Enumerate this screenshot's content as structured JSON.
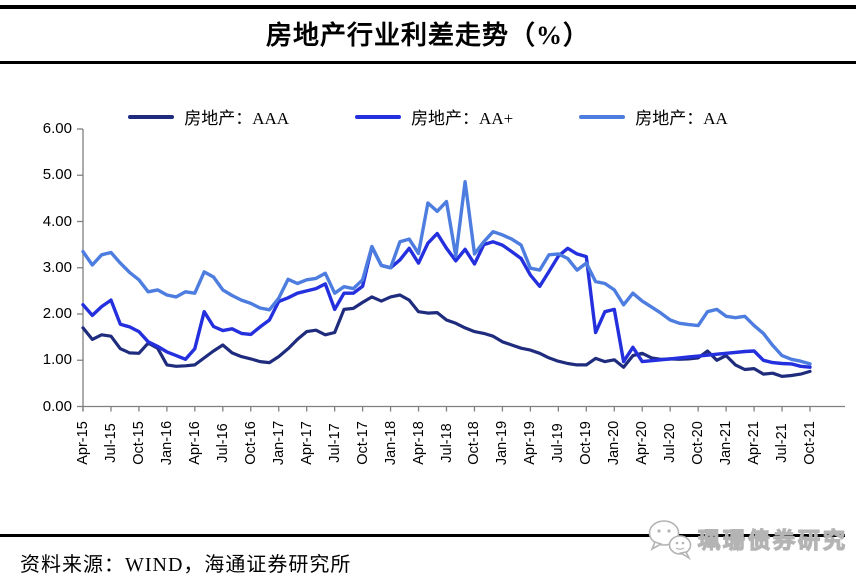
{
  "title": "房地产行业利差走势（%）",
  "legend": [
    {
      "label": "房地产：AAA",
      "color": "#1F2C7E"
    },
    {
      "label": "房地产：AA+",
      "color": "#2430DE"
    },
    {
      "label": "房地产：AA",
      "color": "#4E7DE0"
    }
  ],
  "source_note": "资料来源：WIND，海通证券研究所",
  "watermark_text": "珮珊债券研究",
  "axis_color": "#808080",
  "chart_data": {
    "type": "line",
    "title": "房地产行业利差走势（%）",
    "xlabel": "",
    "ylabel": "",
    "ylim": [
      0,
      6
    ],
    "y_tick_labels": [
      "0.00",
      "1.00",
      "2.00",
      "3.00",
      "4.00",
      "5.00",
      "6.00"
    ],
    "x_tick_labels": [
      "Apr-15",
      "Jul-15",
      "Oct-15",
      "Jan-16",
      "Apr-16",
      "Jul-16",
      "Oct-16",
      "Jan-17",
      "Apr-17",
      "Jul-17",
      "Oct-17",
      "Jan-18",
      "Apr-18",
      "Jul-18",
      "Oct-18",
      "Jan-19",
      "Apr-19",
      "Jul-19",
      "Oct-19",
      "Jan-20",
      "Apr-20",
      "Jul-20",
      "Oct-20",
      "Jan-21",
      "Apr-21",
      "Jul-21",
      "Oct-21"
    ],
    "x_frequency": "monthly",
    "x_range": [
      "Apr-15",
      "Oct-21"
    ],
    "grid": false,
    "legend_position": "top",
    "series": [
      {
        "name": "房地产：AAA",
        "color": "#1F2C7E",
        "values": [
          1.7,
          1.45,
          1.55,
          1.52,
          1.25,
          1.16,
          1.15,
          1.37,
          1.26,
          0.9,
          0.87,
          0.88,
          0.9,
          1.05,
          1.2,
          1.33,
          1.16,
          1.08,
          1.03,
          0.97,
          0.95,
          1.08,
          1.25,
          1.45,
          1.62,
          1.65,
          1.55,
          1.6,
          2.1,
          2.12,
          2.25,
          2.37,
          2.28,
          2.37,
          2.41,
          2.3,
          2.05,
          2.02,
          2.03,
          1.87,
          1.8,
          1.7,
          1.62,
          1.58,
          1.52,
          1.4,
          1.33,
          1.26,
          1.22,
          1.15,
          1.05,
          0.98,
          0.93,
          0.9,
          0.9,
          1.04,
          0.97,
          1.01,
          0.85,
          1.1,
          1.15,
          1.05,
          1.02,
          1.03,
          1.02,
          1.03,
          1.05,
          1.2,
          1.0,
          1.1,
          0.9,
          0.8,
          0.82,
          0.7,
          0.72,
          0.65,
          0.67,
          0.7,
          0.76
        ]
      },
      {
        "name": "房地产：AA+",
        "color": "#2430DE",
        "values": [
          2.2,
          1.97,
          2.16,
          2.3,
          1.78,
          1.72,
          1.62,
          1.4,
          1.3,
          1.18,
          1.1,
          1.02,
          1.25,
          2.05,
          1.73,
          1.64,
          1.68,
          1.58,
          1.56,
          1.72,
          1.87,
          2.27,
          2.35,
          2.45,
          2.5,
          2.55,
          2.65,
          2.1,
          2.45,
          2.45,
          2.6,
          3.45,
          3.05,
          3.0,
          3.17,
          3.42,
          3.1,
          3.53,
          3.74,
          3.42,
          3.15,
          3.4,
          3.08,
          3.5,
          3.56,
          3.49,
          3.35,
          3.2,
          2.84,
          2.6,
          2.92,
          3.25,
          3.42,
          3.3,
          3.24,
          1.6,
          2.05,
          2.1,
          0.97,
          1.28,
          0.97,
          0.99,
          1.01,
          1.03,
          1.05,
          1.07,
          1.09,
          1.11,
          1.13,
          1.15,
          1.17,
          1.19,
          1.2,
          1.0,
          0.95,
          0.93,
          0.92,
          0.87,
          0.85
        ]
      },
      {
        "name": "房地产：AA",
        "color": "#4E7DE0",
        "values": [
          3.35,
          3.06,
          3.28,
          3.33,
          3.1,
          2.9,
          2.74,
          2.48,
          2.52,
          2.41,
          2.37,
          2.48,
          2.45,
          2.91,
          2.8,
          2.52,
          2.4,
          2.3,
          2.23,
          2.13,
          2.09,
          2.34,
          2.75,
          2.66,
          2.74,
          2.77,
          2.88,
          2.45,
          2.59,
          2.55,
          2.74,
          3.46,
          3.05,
          3.0,
          3.56,
          3.62,
          3.31,
          4.4,
          4.22,
          4.43,
          3.25,
          4.86,
          3.3,
          3.56,
          3.78,
          3.71,
          3.62,
          3.49,
          2.99,
          2.95,
          3.28,
          3.3,
          3.2,
          2.95,
          3.1,
          2.7,
          2.66,
          2.52,
          2.2,
          2.45,
          2.28,
          2.15,
          2.02,
          1.87,
          1.8,
          1.77,
          1.75,
          2.05,
          2.1,
          1.95,
          1.92,
          1.95,
          1.75,
          1.58,
          1.32,
          1.1,
          1.02,
          0.98,
          0.92
        ]
      }
    ]
  }
}
